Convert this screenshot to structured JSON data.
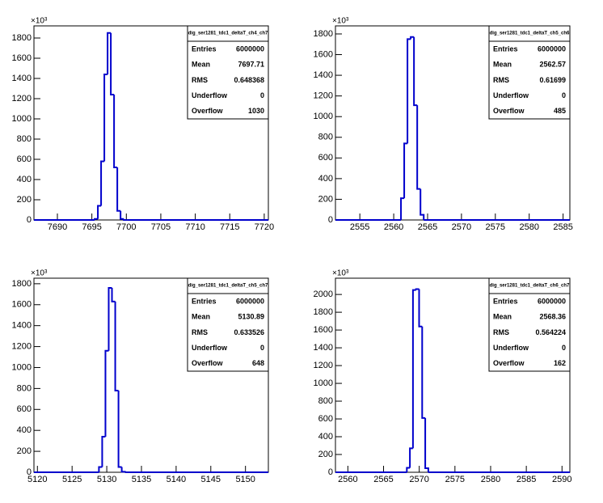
{
  "chart_data": [
    {
      "type": "histogram",
      "y_multiplier": "×10³",
      "color": "#0000cc",
      "bins": [
        7695.4,
        7695.87,
        7696.34,
        7696.81,
        7697.28,
        7697.75,
        7698.22,
        7698.69,
        7699.16,
        7699.63,
        7700.1
      ],
      "counts": [
        10,
        140,
        580,
        1440,
        1850,
        1240,
        520,
        90,
        10,
        0
      ],
      "xlim": [
        7686.6,
        7720.6
      ],
      "ylim": [
        0,
        1920
      ],
      "xticks": [
        7690,
        7695,
        7700,
        7705,
        7710,
        7715,
        7720
      ],
      "yticks": [
        0,
        200,
        400,
        600,
        800,
        1000,
        1200,
        1400,
        1600,
        1800
      ],
      "stats": {
        "title": "dig_ser1281_tdc1_deltaT_ch4_ch7",
        "rows": [
          {
            "label": "Entries",
            "value": "6000000"
          },
          {
            "label": "Mean",
            "value": "7697.71"
          },
          {
            "label": "RMS",
            "value": "0.648368"
          },
          {
            "label": "Underflow",
            "value": "0"
          },
          {
            "label": "Overflow",
            "value": "1030"
          }
        ]
      }
    },
    {
      "type": "histogram",
      "y_multiplier": "×10³",
      "color": "#0000cc",
      "bins": [
        2561.07,
        2561.55,
        2562.03,
        2562.51,
        2562.99,
        2563.47,
        2563.95,
        2564.43
      ],
      "counts": [
        210,
        740,
        1750,
        1770,
        1110,
        300,
        50
      ],
      "xlim": [
        2551.4,
        2586.0
      ],
      "ylim": [
        0,
        1878
      ],
      "xticks": [
        2555,
        2560,
        2565,
        2570,
        2575,
        2580,
        2585
      ],
      "yticks": [
        0,
        200,
        400,
        600,
        800,
        1000,
        1200,
        1400,
        1600,
        1800
      ],
      "stats": {
        "title": "dig_ser1281_tdc1_deltaT_ch5_ch6",
        "rows": [
          {
            "label": "Entries",
            "value": "6000000"
          },
          {
            "label": "Mean",
            "value": "2562.57"
          },
          {
            "label": "RMS",
            "value": "0.61699"
          },
          {
            "label": "Underflow",
            "value": "0"
          },
          {
            "label": "Overflow",
            "value": "485"
          }
        ]
      }
    },
    {
      "type": "histogram",
      "y_multiplier": "×10³",
      "color": "#0000cc",
      "bins": [
        5128.87,
        5129.34,
        5129.81,
        5130.28,
        5130.75,
        5131.22,
        5131.69,
        5132.16,
        5132.63
      ],
      "counts": [
        50,
        340,
        1160,
        1760,
        1630,
        780,
        50,
        5
      ],
      "xlim": [
        5119.5,
        5153.3
      ],
      "ylim": [
        0,
        1853
      ],
      "xticks": [
        5120,
        5125,
        5130,
        5135,
        5140,
        5145,
        5150
      ],
      "yticks": [
        0,
        200,
        400,
        600,
        800,
        1000,
        1200,
        1400,
        1600,
        1800
      ],
      "stats": {
        "title": "dig_ser1281_tdc1_deltaT_ch5_ch7",
        "rows": [
          {
            "label": "Entries",
            "value": "6000000"
          },
          {
            "label": "Mean",
            "value": "5130.89"
          },
          {
            "label": "RMS",
            "value": "0.633526"
          },
          {
            "label": "Underflow",
            "value": "0"
          },
          {
            "label": "Overflow",
            "value": "648"
          }
        ]
      }
    },
    {
      "type": "histogram",
      "y_multiplier": "×10³",
      "color": "#0000cc",
      "bins": [
        2568.26,
        2568.69,
        2569.12,
        2569.55,
        2569.98,
        2570.41,
        2570.84,
        2571.27
      ],
      "counts": [
        50,
        270,
        2050,
        2060,
        1640,
        610,
        45
      ],
      "xlim": [
        2558.26,
        2591.1
      ],
      "ylim": [
        0,
        2183
      ],
      "xticks": [
        2560,
        2565,
        2570,
        2575,
        2580,
        2585,
        2590
      ],
      "yticks": [
        0,
        200,
        400,
        600,
        800,
        1000,
        1200,
        1400,
        1600,
        1800,
        2000
      ],
      "stats": {
        "title": "dig_ser1281_tdc1_deltaT_ch6_ch7",
        "rows": [
          {
            "label": "Entries",
            "value": "6000000"
          },
          {
            "label": "Mean",
            "value": "2568.36"
          },
          {
            "label": "RMS",
            "value": "0.564224"
          },
          {
            "label": "Underflow",
            "value": "0"
          },
          {
            "label": "Overflow",
            "value": "162"
          }
        ]
      }
    }
  ]
}
